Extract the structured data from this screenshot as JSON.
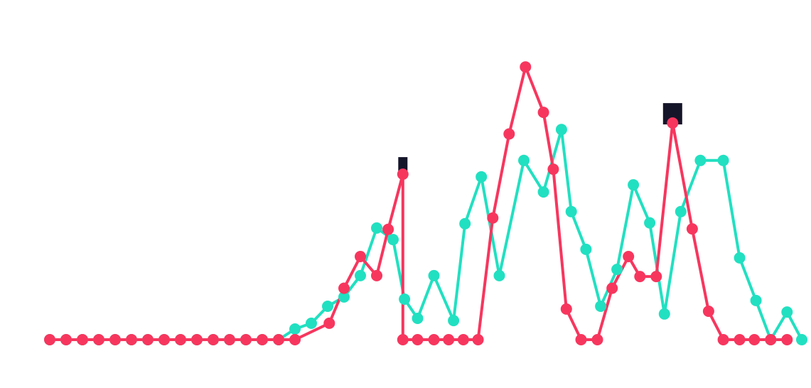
{
  "chart_data": {
    "type": "line",
    "title": "",
    "xlabel": "",
    "ylabel": "",
    "grid": false,
    "legend": "none",
    "ylim": [
      0,
      100
    ],
    "series": [
      {
        "color": "#21e0c1",
        "points": [
          [
            0,
            0
          ],
          [
            1,
            0
          ],
          [
            2,
            0
          ],
          [
            3,
            0
          ],
          [
            4,
            0
          ],
          [
            5,
            0
          ],
          [
            6,
            0
          ],
          [
            7,
            0
          ],
          [
            8,
            0
          ],
          [
            9,
            0
          ],
          [
            10,
            0
          ],
          [
            11,
            0
          ],
          [
            12,
            0
          ],
          [
            13,
            0
          ],
          [
            14,
            0
          ],
          [
            15,
            3.9
          ],
          [
            16,
            6.0
          ],
          [
            17,
            12.2
          ],
          [
            18,
            15.6
          ],
          [
            19,
            23.4
          ],
          [
            20,
            40.8
          ],
          [
            21,
            36.6
          ],
          [
            21.7,
            14.8
          ],
          [
            22.5,
            7.8
          ],
          [
            23.5,
            23.4
          ],
          [
            24.7,
            7.0
          ],
          [
            25.4,
            42.4
          ],
          [
            26.4,
            59.5
          ],
          [
            27.5,
            23.4
          ],
          [
            29,
            65.5
          ],
          [
            30.2,
            54.0
          ],
          [
            31.3,
            76.8
          ],
          [
            31.9,
            46.8
          ],
          [
            32.8,
            33.0
          ],
          [
            33.7,
            12.2
          ],
          [
            34.7,
            25.7
          ],
          [
            35.7,
            56.6
          ],
          [
            36.7,
            42.7
          ],
          [
            37.6,
            9.4
          ],
          [
            38.6,
            46.8
          ],
          [
            39.8,
            65.5
          ],
          [
            41.2,
            65.5
          ],
          [
            42.2,
            29.9
          ],
          [
            43.2,
            14.3
          ],
          [
            44.1,
            0
          ],
          [
            45.1,
            10.1
          ],
          [
            46.0,
            0
          ]
        ]
      },
      {
        "color": "#f7365e",
        "points": [
          [
            0,
            0
          ],
          [
            1,
            0
          ],
          [
            2,
            0
          ],
          [
            3,
            0
          ],
          [
            4,
            0
          ],
          [
            5,
            0
          ],
          [
            6,
            0
          ],
          [
            7,
            0
          ],
          [
            8,
            0
          ],
          [
            9,
            0
          ],
          [
            10,
            0
          ],
          [
            11,
            0
          ],
          [
            12,
            0
          ],
          [
            13,
            0
          ],
          [
            14,
            0
          ],
          [
            15,
            0
          ],
          [
            17.1,
            6.0
          ],
          [
            18,
            18.8
          ],
          [
            19,
            30.4
          ],
          [
            20,
            23.4
          ],
          [
            20.7,
            40.3
          ],
          [
            21.6,
            60.5
          ],
          [
            21.6,
            0
          ],
          [
            22.5,
            0
          ],
          [
            23.5,
            0
          ],
          [
            24.4,
            0
          ],
          [
            25.3,
            0
          ],
          [
            26.2,
            0
          ],
          [
            27.1,
            44.5
          ],
          [
            28.1,
            75.2
          ],
          [
            29.1,
            99.7
          ],
          [
            30.2,
            83.1
          ],
          [
            30.8,
            62.3
          ],
          [
            31.6,
            11.2
          ],
          [
            32.5,
            0
          ],
          [
            33.5,
            0
          ],
          [
            34.4,
            18.8
          ],
          [
            35.4,
            30.4
          ],
          [
            36.1,
            23.1
          ],
          [
            37.1,
            23.1
          ],
          [
            38.1,
            79.2
          ],
          [
            39.3,
            40.5
          ],
          [
            40.3,
            10.4
          ],
          [
            41.2,
            0
          ],
          [
            42.2,
            0
          ],
          [
            43.1,
            0
          ],
          [
            44.1,
            0
          ],
          [
            45.1,
            0
          ]
        ]
      }
    ],
    "markers": [
      {
        "x": 21.6,
        "y": 60.5,
        "color": "#15152a"
      },
      {
        "x": 38.1,
        "y": 79.2,
        "color": "#15152a"
      }
    ]
  }
}
